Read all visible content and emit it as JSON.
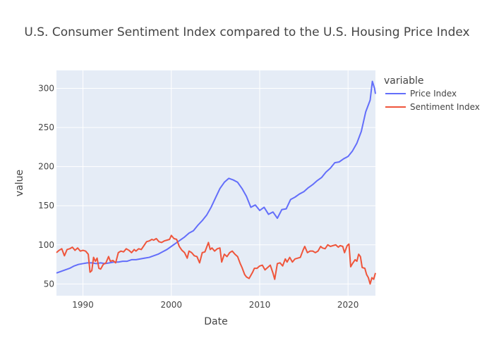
{
  "chart_data": {
    "type": "line",
    "title": "U.S. Consumer Sentiment Index compared to the U.S. Housing Price Index",
    "xlabel": "Date",
    "ylabel": "value",
    "xlim": [
      1987.0,
      2023.1
    ],
    "ylim": [
      35,
      323
    ],
    "x_ticks": [
      1990,
      2000,
      2010,
      2020
    ],
    "y_ticks": [
      50,
      100,
      150,
      200,
      250,
      300
    ],
    "grid": true,
    "legend": {
      "title": "variable",
      "placement": "top-right outside"
    },
    "colors": {
      "plot_bg": "#e5ecf6",
      "grid": "#ffffff",
      "price": "#636efa",
      "sentiment": "#ef553b"
    },
    "series": [
      {
        "name": "Price Index",
        "color": "#636efa",
        "points": [
          [
            1987.0,
            64
          ],
          [
            1987.5,
            66
          ],
          [
            1988.0,
            68
          ],
          [
            1988.5,
            70
          ],
          [
            1989.0,
            73
          ],
          [
            1989.5,
            75
          ],
          [
            1990.0,
            76
          ],
          [
            1990.5,
            77
          ],
          [
            1991.0,
            77
          ],
          [
            1991.5,
            76
          ],
          [
            1992.0,
            77
          ],
          [
            1992.5,
            76
          ],
          [
            1993.0,
            77
          ],
          [
            1993.5,
            78
          ],
          [
            1994.0,
            78
          ],
          [
            1994.5,
            79
          ],
          [
            1995.0,
            79
          ],
          [
            1995.5,
            81
          ],
          [
            1996.0,
            81
          ],
          [
            1996.5,
            82
          ],
          [
            1997.0,
            83
          ],
          [
            1997.5,
            84
          ],
          [
            1998.0,
            86
          ],
          [
            1998.5,
            88
          ],
          [
            1999.0,
            91
          ],
          [
            1999.5,
            94
          ],
          [
            2000.0,
            98
          ],
          [
            2000.5,
            102
          ],
          [
            2001.0,
            106
          ],
          [
            2001.5,
            110
          ],
          [
            2002.0,
            115
          ],
          [
            2002.5,
            118
          ],
          [
            2003.0,
            125
          ],
          [
            2003.5,
            131
          ],
          [
            2004.0,
            138
          ],
          [
            2004.5,
            148
          ],
          [
            2005.0,
            160
          ],
          [
            2005.5,
            172
          ],
          [
            2006.0,
            180
          ],
          [
            2006.5,
            185
          ],
          [
            2007.0,
            183
          ],
          [
            2007.5,
            180
          ],
          [
            2008.0,
            172
          ],
          [
            2008.5,
            162
          ],
          [
            2009.0,
            148
          ],
          [
            2009.5,
            151
          ],
          [
            2010.0,
            144
          ],
          [
            2010.5,
            148
          ],
          [
            2011.0,
            139
          ],
          [
            2011.5,
            142
          ],
          [
            2012.0,
            134
          ],
          [
            2012.5,
            145
          ],
          [
            2013.0,
            146
          ],
          [
            2013.5,
            158
          ],
          [
            2014.0,
            161
          ],
          [
            2014.5,
            165
          ],
          [
            2015.0,
            168
          ],
          [
            2015.5,
            173
          ],
          [
            2016.0,
            177
          ],
          [
            2016.5,
            182
          ],
          [
            2017.0,
            186
          ],
          [
            2017.5,
            193
          ],
          [
            2018.0,
            198
          ],
          [
            2018.5,
            205
          ],
          [
            2019.0,
            206
          ],
          [
            2019.5,
            210
          ],
          [
            2020.0,
            213
          ],
          [
            2020.5,
            220
          ],
          [
            2021.0,
            230
          ],
          [
            2021.5,
            245
          ],
          [
            2022.0,
            270
          ],
          [
            2022.5,
            285
          ],
          [
            2022.75,
            309
          ],
          [
            2023.0,
            300
          ],
          [
            2023.1,
            293
          ]
        ]
      },
      {
        "name": "Sentiment Index",
        "color": "#ef553b",
        "points": [
          [
            1987.0,
            90
          ],
          [
            1987.3,
            93
          ],
          [
            1987.6,
            95
          ],
          [
            1987.9,
            86
          ],
          [
            1988.2,
            94
          ],
          [
            1988.5,
            95
          ],
          [
            1988.8,
            97
          ],
          [
            1989.1,
            93
          ],
          [
            1989.4,
            96
          ],
          [
            1989.7,
            92
          ],
          [
            1990.0,
            93
          ],
          [
            1990.3,
            92
          ],
          [
            1990.6,
            88
          ],
          [
            1990.8,
            65
          ],
          [
            1991.0,
            67
          ],
          [
            1991.2,
            84
          ],
          [
            1991.4,
            79
          ],
          [
            1991.6,
            83
          ],
          [
            1991.8,
            70
          ],
          [
            1992.0,
            69
          ],
          [
            1992.3,
            75
          ],
          [
            1992.6,
            77
          ],
          [
            1992.9,
            85
          ],
          [
            1993.1,
            79
          ],
          [
            1993.4,
            80
          ],
          [
            1993.7,
            77
          ],
          [
            1994.0,
            90
          ],
          [
            1994.3,
            92
          ],
          [
            1994.6,
            91
          ],
          [
            1994.9,
            95
          ],
          [
            1995.2,
            93
          ],
          [
            1995.5,
            90
          ],
          [
            1995.8,
            94
          ],
          [
            1996.0,
            92
          ],
          [
            1996.3,
            95
          ],
          [
            1996.6,
            94
          ],
          [
            1996.9,
            99
          ],
          [
            1997.2,
            104
          ],
          [
            1997.5,
            105
          ],
          [
            1997.8,
            107
          ],
          [
            1998.0,
            106
          ],
          [
            1998.3,
            108
          ],
          [
            1998.6,
            104
          ],
          [
            1998.9,
            103
          ],
          [
            1999.2,
            105
          ],
          [
            1999.5,
            106
          ],
          [
            1999.8,
            107
          ],
          [
            2000.0,
            112
          ],
          [
            2000.3,
            108
          ],
          [
            2000.6,
            107
          ],
          [
            2000.9,
            98
          ],
          [
            2001.2,
            93
          ],
          [
            2001.5,
            90
          ],
          [
            2001.8,
            83
          ],
          [
            2002.0,
            92
          ],
          [
            2002.3,
            90
          ],
          [
            2002.6,
            86
          ],
          [
            2002.9,
            85
          ],
          [
            2003.2,
            77
          ],
          [
            2003.5,
            90
          ],
          [
            2003.8,
            91
          ],
          [
            2004.0,
            97
          ],
          [
            2004.2,
            103
          ],
          [
            2004.4,
            94
          ],
          [
            2004.6,
            96
          ],
          [
            2004.9,
            92
          ],
          [
            2005.2,
            95
          ],
          [
            2005.5,
            96
          ],
          [
            2005.7,
            78
          ],
          [
            2006.0,
            88
          ],
          [
            2006.3,
            85
          ],
          [
            2006.6,
            90
          ],
          [
            2006.9,
            92
          ],
          [
            2007.2,
            88
          ],
          [
            2007.5,
            85
          ],
          [
            2007.8,
            76
          ],
          [
            2008.0,
            71
          ],
          [
            2008.3,
            62
          ],
          [
            2008.5,
            59
          ],
          [
            2008.8,
            57
          ],
          [
            2009.0,
            61
          ],
          [
            2009.2,
            65
          ],
          [
            2009.4,
            70
          ],
          [
            2009.7,
            70
          ],
          [
            2010.0,
            73
          ],
          [
            2010.3,
            74
          ],
          [
            2010.6,
            68
          ],
          [
            2010.9,
            71
          ],
          [
            2011.2,
            74
          ],
          [
            2011.5,
            64
          ],
          [
            2011.7,
            56
          ],
          [
            2012.0,
            76
          ],
          [
            2012.3,
            77
          ],
          [
            2012.6,
            73
          ],
          [
            2012.9,
            82
          ],
          [
            2013.1,
            78
          ],
          [
            2013.4,
            84
          ],
          [
            2013.7,
            78
          ],
          [
            2014.0,
            82
          ],
          [
            2014.3,
            83
          ],
          [
            2014.6,
            84
          ],
          [
            2014.9,
            93
          ],
          [
            2015.1,
            98
          ],
          [
            2015.4,
            90
          ],
          [
            2015.7,
            92
          ],
          [
            2016.0,
            92
          ],
          [
            2016.3,
            90
          ],
          [
            2016.6,
            92
          ],
          [
            2016.9,
            98
          ],
          [
            2017.1,
            96
          ],
          [
            2017.4,
            95
          ],
          [
            2017.7,
            100
          ],
          [
            2018.0,
            98
          ],
          [
            2018.3,
            99
          ],
          [
            2018.6,
            100
          ],
          [
            2018.9,
            97
          ],
          [
            2019.1,
            99
          ],
          [
            2019.4,
            98
          ],
          [
            2019.6,
            90
          ],
          [
            2019.9,
            99
          ],
          [
            2020.1,
            101
          ],
          [
            2020.3,
            72
          ],
          [
            2020.5,
            76
          ],
          [
            2020.8,
            81
          ],
          [
            2021.0,
            79
          ],
          [
            2021.2,
            88
          ],
          [
            2021.4,
            85
          ],
          [
            2021.6,
            71
          ],
          [
            2021.9,
            70
          ],
          [
            2022.1,
            62
          ],
          [
            2022.3,
            58
          ],
          [
            2022.5,
            50
          ],
          [
            2022.7,
            58
          ],
          [
            2022.9,
            56
          ],
          [
            2023.1,
            64
          ]
        ]
      }
    ]
  }
}
